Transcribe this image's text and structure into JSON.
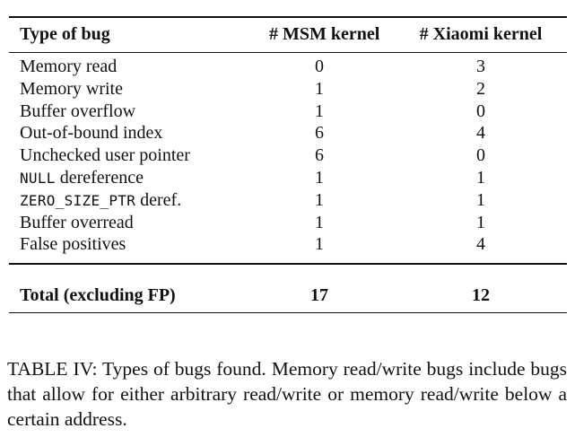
{
  "table": {
    "headers": [
      "Type of bug",
      "# MSM kernel",
      "# Xiaomi kernel"
    ],
    "rows": [
      {
        "type_code": "",
        "type_text": "Memory read",
        "msm": "0",
        "xiaomi": "3"
      },
      {
        "type_code": "",
        "type_text": "Memory write",
        "msm": "1",
        "xiaomi": "2"
      },
      {
        "type_code": "",
        "type_text": "Buffer overflow",
        "msm": "1",
        "xiaomi": "0"
      },
      {
        "type_code": "",
        "type_text": "Out-of-bound index",
        "msm": "6",
        "xiaomi": "4"
      },
      {
        "type_code": "",
        "type_text": "Unchecked user pointer",
        "msm": "6",
        "xiaomi": "0"
      },
      {
        "type_code": "NULL",
        "type_text": " dereference",
        "msm": "1",
        "xiaomi": "1"
      },
      {
        "type_code": "ZERO_SIZE_PTR",
        "type_text": " deref.",
        "msm": "1",
        "xiaomi": "1"
      },
      {
        "type_code": "",
        "type_text": "Buffer overread",
        "msm": "1",
        "xiaomi": "1"
      },
      {
        "type_code": "",
        "type_text": "False positives",
        "msm": "1",
        "xiaomi": "4"
      }
    ],
    "total": {
      "label": "Total (excluding FP)",
      "msm": "17",
      "xiaomi": "12"
    }
  },
  "caption": "TABLE IV: Types of bugs found. Memory read/write bugs include bugs that allow for either arbitrary read/write or memory read/write below a certain address."
}
